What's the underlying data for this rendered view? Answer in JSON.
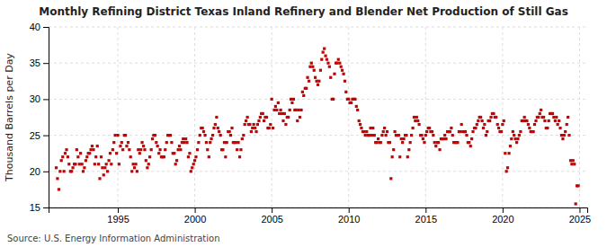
{
  "chart_data": {
    "type": "scatter",
    "title": "Monthly Refining District Texas Inland Refinery and Blender Net Production of Still Gas",
    "ylabel": "Thousand Barrels per Day",
    "source": "Source: U.S. Energy Information Administration",
    "color": "#cc0000",
    "marker": "square",
    "grid": true,
    "xlim": [
      1990.5,
      2025.5
    ],
    "ylim": [
      15,
      40
    ],
    "xticks": [
      1995,
      2000,
      2005,
      2010,
      2015,
      2020,
      2025
    ],
    "yticks": [
      15,
      20,
      25,
      30,
      35,
      40
    ],
    "x": [
      1991.0,
      1991.08,
      1991.17,
      1991.25,
      1991.33,
      1991.42,
      1991.5,
      1991.58,
      1991.67,
      1991.75,
      1991.83,
      1991.92,
      1992.0,
      1992.08,
      1992.17,
      1992.25,
      1992.33,
      1992.42,
      1992.5,
      1992.58,
      1992.67,
      1992.75,
      1992.83,
      1992.92,
      1993.0,
      1993.08,
      1993.17,
      1993.25,
      1993.33,
      1993.42,
      1993.5,
      1993.58,
      1993.67,
      1993.75,
      1993.83,
      1993.92,
      1994.0,
      1994.08,
      1994.17,
      1994.25,
      1994.33,
      1994.42,
      1994.5,
      1994.58,
      1994.67,
      1994.75,
      1994.83,
      1994.92,
      1995.0,
      1995.08,
      1995.17,
      1995.25,
      1995.33,
      1995.42,
      1995.5,
      1995.58,
      1995.67,
      1995.75,
      1995.83,
      1995.92,
      1996.0,
      1996.08,
      1996.17,
      1996.25,
      1996.33,
      1996.42,
      1996.5,
      1996.58,
      1996.67,
      1996.75,
      1996.83,
      1996.92,
      1997.0,
      1997.08,
      1997.17,
      1997.25,
      1997.33,
      1997.42,
      1997.5,
      1997.58,
      1997.67,
      1997.75,
      1997.83,
      1997.92,
      1998.0,
      1998.08,
      1998.17,
      1998.25,
      1998.33,
      1998.42,
      1998.5,
      1998.58,
      1998.67,
      1998.75,
      1998.83,
      1998.92,
      1999.0,
      1999.08,
      1999.17,
      1999.25,
      1999.33,
      1999.42,
      1999.5,
      1999.58,
      1999.67,
      1999.75,
      1999.83,
      1999.92,
      2000.0,
      2000.08,
      2000.17,
      2000.25,
      2000.33,
      2000.42,
      2000.5,
      2000.58,
      2000.67,
      2000.75,
      2000.83,
      2000.92,
      2001.0,
      2001.08,
      2001.17,
      2001.25,
      2001.33,
      2001.42,
      2001.5,
      2001.58,
      2001.67,
      2001.75,
      2001.83,
      2001.92,
      2002.0,
      2002.08,
      2002.17,
      2002.25,
      2002.33,
      2002.42,
      2002.5,
      2002.58,
      2002.67,
      2002.75,
      2002.83,
      2002.92,
      2003.0,
      2003.08,
      2003.17,
      2003.25,
      2003.33,
      2003.42,
      2003.5,
      2003.58,
      2003.67,
      2003.75,
      2003.83,
      2003.92,
      2004.0,
      2004.08,
      2004.17,
      2004.25,
      2004.33,
      2004.42,
      2004.5,
      2004.58,
      2004.67,
      2004.75,
      2004.83,
      2004.92,
      2005.0,
      2005.08,
      2005.17,
      2005.25,
      2005.33,
      2005.42,
      2005.5,
      2005.58,
      2005.67,
      2005.75,
      2005.83,
      2005.92,
      2006.0,
      2006.08,
      2006.17,
      2006.25,
      2006.33,
      2006.42,
      2006.5,
      2006.58,
      2006.67,
      2006.75,
      2006.83,
      2006.92,
      2007.0,
      2007.08,
      2007.17,
      2007.25,
      2007.33,
      2007.42,
      2007.5,
      2007.58,
      2007.67,
      2007.75,
      2007.83,
      2007.92,
      2008.0,
      2008.08,
      2008.17,
      2008.25,
      2008.33,
      2008.42,
      2008.5,
      2008.58,
      2008.67,
      2008.75,
      2008.83,
      2008.92,
      2009.0,
      2009.08,
      2009.17,
      2009.25,
      2009.33,
      2009.42,
      2009.5,
      2009.58,
      2009.67,
      2009.75,
      2009.83,
      2009.92,
      2010.0,
      2010.08,
      2010.17,
      2010.25,
      2010.33,
      2010.42,
      2010.5,
      2010.58,
      2010.67,
      2010.75,
      2010.83,
      2010.92,
      2011.0,
      2011.08,
      2011.17,
      2011.25,
      2011.33,
      2011.42,
      2011.5,
      2011.58,
      2011.67,
      2011.75,
      2011.83,
      2011.92,
      2012.0,
      2012.08,
      2012.17,
      2012.25,
      2012.33,
      2012.42,
      2012.5,
      2012.58,
      2012.67,
      2012.75,
      2012.83,
      2012.92,
      2013.0,
      2013.08,
      2013.17,
      2013.25,
      2013.33,
      2013.42,
      2013.5,
      2013.58,
      2013.67,
      2013.75,
      2013.83,
      2013.92,
      2014.0,
      2014.08,
      2014.17,
      2014.25,
      2014.33,
      2014.42,
      2014.5,
      2014.58,
      2014.67,
      2014.75,
      2014.83,
      2014.92,
      2015.0,
      2015.08,
      2015.17,
      2015.25,
      2015.33,
      2015.42,
      2015.5,
      2015.58,
      2015.67,
      2015.75,
      2015.83,
      2015.92,
      2016.0,
      2016.08,
      2016.17,
      2016.25,
      2016.33,
      2016.42,
      2016.5,
      2016.58,
      2016.67,
      2016.75,
      2016.83,
      2016.92,
      2017.0,
      2017.08,
      2017.17,
      2017.25,
      2017.33,
      2017.42,
      2017.5,
      2017.58,
      2017.67,
      2017.75,
      2017.83,
      2017.92,
      2018.0,
      2018.08,
      2018.17,
      2018.25,
      2018.33,
      2018.42,
      2018.5,
      2018.58,
      2018.67,
      2018.75,
      2018.83,
      2018.92,
      2019.0,
      2019.08,
      2019.17,
      2019.25,
      2019.33,
      2019.42,
      2019.5,
      2019.58,
      2019.67,
      2019.75,
      2019.83,
      2019.92,
      2020.0,
      2020.08,
      2020.17,
      2020.25,
      2020.33,
      2020.42,
      2020.5,
      2020.58,
      2020.67,
      2020.75,
      2020.83,
      2020.92,
      2021.0,
      2021.08,
      2021.17,
      2021.25,
      2021.33,
      2021.42,
      2021.5,
      2021.58,
      2021.67,
      2021.75,
      2021.83,
      2021.92,
      2022.0,
      2022.08,
      2022.17,
      2022.25,
      2022.33,
      2022.42,
      2022.5,
      2022.58,
      2022.67,
      2022.75,
      2022.83,
      2022.92,
      2023.0,
      2023.08,
      2023.17,
      2023.25,
      2023.33,
      2023.42,
      2023.5,
      2023.58,
      2023.67,
      2023.75,
      2023.83,
      2023.92,
      2024.0,
      2024.08,
      2024.17,
      2024.25,
      2024.33,
      2024.42,
      2024.5,
      2024.58,
      2024.67,
      2024.75,
      2024.83,
      2024.92
    ],
    "values": [
      20.5,
      19.0,
      17.5,
      20.0,
      21.5,
      22.0,
      20.0,
      22.5,
      23.0,
      22.0,
      21.0,
      20.0,
      20.0,
      20.5,
      21.0,
      21.0,
      23.0,
      22.0,
      21.0,
      22.5,
      21.0,
      20.0,
      20.5,
      21.5,
      22.0,
      22.5,
      22.5,
      23.0,
      23.5,
      23.0,
      21.0,
      22.0,
      23.5,
      21.0,
      19.0,
      22.0,
      20.5,
      19.5,
      20.5,
      21.0,
      20.0,
      21.5,
      22.5,
      21.0,
      23.0,
      24.0,
      25.0,
      22.5,
      25.0,
      21.0,
      23.5,
      24.0,
      23.0,
      25.0,
      25.0,
      23.5,
      24.0,
      23.0,
      22.0,
      20.0,
      21.0,
      20.5,
      21.0,
      20.0,
      23.0,
      22.5,
      23.0,
      24.0,
      23.5,
      23.0,
      21.5,
      20.5,
      21.0,
      22.0,
      23.0,
      24.5,
      25.0,
      25.0,
      24.0,
      23.5,
      22.5,
      23.0,
      22.0,
      22.0,
      22.0,
      23.0,
      24.0,
      25.0,
      25.0,
      25.0,
      24.0,
      22.5,
      22.5,
      21.0,
      21.5,
      23.0,
      23.5,
      23.0,
      24.0,
      24.5,
      24.0,
      24.5,
      24.0,
      22.0,
      22.5,
      20.0,
      20.5,
      21.0,
      21.5,
      22.0,
      23.0,
      24.0,
      25.0,
      26.0,
      26.0,
      25.5,
      25.0,
      24.0,
      23.0,
      22.0,
      24.0,
      24.5,
      25.0,
      26.0,
      26.5,
      27.5,
      26.0,
      25.5,
      25.0,
      23.0,
      23.0,
      24.0,
      22.0,
      24.0,
      25.5,
      25.5,
      25.0,
      26.0,
      24.0,
      24.0,
      24.0,
      23.0,
      24.0,
      22.0,
      23.0,
      24.5,
      25.0,
      26.5,
      27.0,
      27.5,
      26.5,
      26.5,
      25.5,
      26.0,
      26.5,
      26.0,
      25.5,
      26.5,
      27.0,
      27.5,
      28.0,
      28.0,
      27.0,
      27.5,
      27.5,
      26.0,
      26.0,
      26.5,
      30.0,
      26.0,
      28.5,
      29.0,
      28.5,
      29.5,
      28.0,
      28.5,
      28.0,
      27.0,
      28.0,
      26.5,
      27.5,
      27.5,
      28.5,
      30.0,
      29.5,
      30.0,
      28.5,
      28.5,
      27.0,
      28.5,
      27.5,
      28.5,
      31.0,
      30.5,
      31.5,
      31.5,
      33.0,
      32.5,
      34.5,
      35.0,
      34.5,
      34.0,
      33.0,
      32.5,
      32.0,
      32.5,
      34.0,
      35.5,
      36.5,
      37.0,
      36.0,
      35.5,
      35.0,
      34.5,
      33.0,
      30.0,
      30.0,
      33.5,
      35.0,
      35.0,
      35.5,
      35.0,
      34.5,
      34.0,
      33.5,
      32.5,
      31.0,
      30.0,
      30.0,
      29.5,
      29.5,
      30.0,
      30.0,
      30.0,
      29.0,
      28.5,
      27.0,
      26.5,
      26.0,
      25.5,
      25.5,
      25.0,
      25.5,
      25.0,
      25.0,
      26.0,
      25.0,
      26.0,
      25.0,
      24.0,
      24.0,
      24.5,
      24.0,
      24.0,
      25.0,
      25.5,
      26.0,
      25.0,
      25.5,
      24.0,
      24.0,
      19.0,
      22.0,
      23.0,
      25.5,
      25.0,
      25.0,
      25.0,
      22.0,
      24.5,
      24.0,
      24.5,
      25.0,
      25.0,
      22.0,
      23.0,
      24.0,
      25.0,
      26.0,
      27.5,
      27.0,
      27.5,
      27.0,
      26.5,
      25.0,
      25.0,
      24.5,
      24.0,
      25.0,
      25.5,
      26.0,
      26.0,
      25.5,
      25.5,
      25.0,
      24.0,
      23.5,
      24.0,
      24.0,
      23.0,
      24.5,
      24.5,
      24.5,
      25.0,
      24.5,
      25.5,
      25.5,
      25.5,
      26.0,
      25.0,
      24.0,
      24.0,
      24.0,
      24.0,
      25.5,
      25.5,
      26.5,
      25.5,
      25.5,
      25.5,
      25.0,
      24.0,
      24.0,
      23.5,
      24.5,
      25.5,
      26.0,
      26.0,
      26.5,
      27.0,
      27.5,
      27.5,
      27.0,
      26.0,
      26.5,
      25.0,
      25.5,
      27.0,
      27.0,
      27.5,
      28.0,
      28.0,
      27.5,
      27.5,
      26.5,
      26.0,
      25.5,
      25.5,
      26.5,
      27.0,
      22.5,
      20.0,
      20.5,
      22.5,
      23.5,
      24.5,
      25.5,
      25.0,
      24.5,
      24.0,
      24.5,
      25.0,
      25.5,
      27.0,
      27.0,
      27.5,
      27.0,
      27.0,
      26.5,
      26.0,
      25.5,
      25.5,
      25.5,
      26.5,
      27.0,
      27.5,
      27.5,
      28.0,
      28.5,
      27.5,
      27.5,
      27.0,
      26.0,
      26.0,
      27.0,
      28.0,
      28.0,
      28.0,
      27.5,
      27.0,
      27.5,
      26.5,
      27.0,
      26.0,
      25.0,
      24.5,
      25.0,
      25.5,
      26.5,
      27.5,
      25.0,
      21.5,
      21.0,
      21.5,
      21.0,
      15.5,
      18.0,
      18.0
    ]
  }
}
